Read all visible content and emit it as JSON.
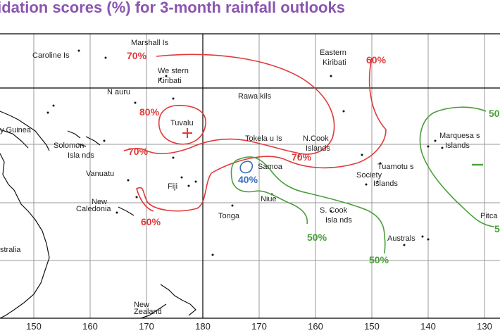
{
  "title": "lidation scores (%) for 3-month rainfall outlooks",
  "colors": {
    "title": "#8a55b0",
    "c70": "#e13a3a",
    "c50": "#4aa03a",
    "c40": "#3a6fb8",
    "land": "#111111"
  },
  "places": {
    "marshall": "Marshall Is",
    "caroline": "Caroline Is",
    "eastern": "Eastern",
    "kiribati_e": "Kiribati",
    "western": "We stern",
    "kiribati_w": "Kiribati",
    "nauru": "N auru",
    "rawakils": "Rawa kils",
    "tuvalu": "Tuvalu",
    "tokelau": "Tokela u Is",
    "ncook1": "N.Cook",
    "ncook2": "Islands",
    "marquesas1": "Marquesa s",
    "marquesas2": "Islands",
    "solomon1": "Solomon",
    "solomon2": "Isla nds",
    "guinea": "y Guinea",
    "vanuatu": "Vanuatu",
    "samoa": "Samoa",
    "tuamotu": "Tuamotu s",
    "society1": "Society",
    "society2": "Islands",
    "fiji": "Fiji",
    "newcal1": "New",
    "newcal2": "Caledonia",
    "niue": "Niue",
    "scook1": "S. Cook",
    "scook2": "Isla nds",
    "tonga": "Tonga",
    "australs": "Australs",
    "pitcairn": "Pitca",
    "australia": "stralia",
    "nz1": "New",
    "nz2": "Zealand"
  },
  "labels": {
    "p70a": "70%",
    "p60a": "60%",
    "p80": "80%",
    "p70b": "70%",
    "p70c": "70%",
    "p40": "40%",
    "p60b": "60%",
    "p50a": "50%",
    "p50b": "50%",
    "p50c": "50",
    "p50d": "5"
  },
  "axis_ticks": [
    "150",
    "160",
    "170",
    "180",
    "170",
    "160",
    "150",
    "140",
    "130"
  ]
}
